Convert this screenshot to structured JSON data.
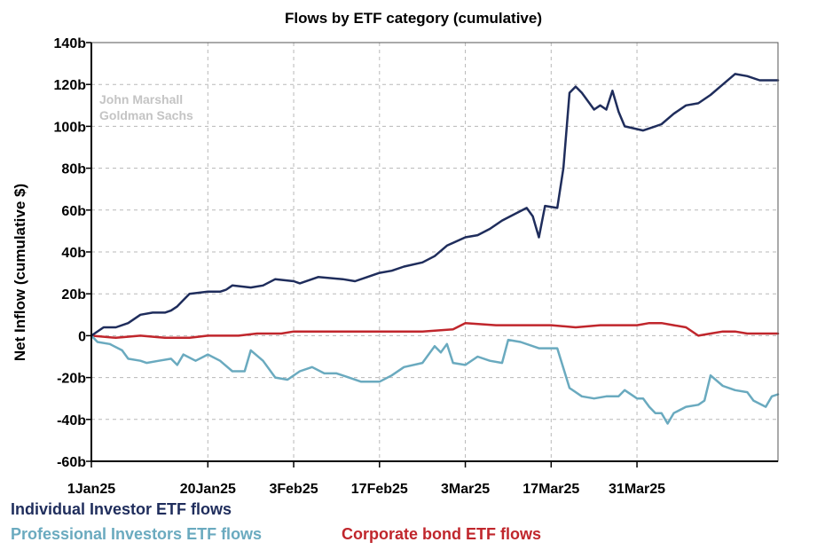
{
  "chart_data": {
    "type": "line",
    "title": "Flows by ETF category (cumulative)",
    "ylabel": "Net Inflow (cumulative $)",
    "xlabel": "",
    "ylim": [
      -60,
      140
    ],
    "xlim": [
      "2025-01-01",
      "2025-04-23"
    ],
    "y_ticks": [
      "140b",
      "120b",
      "100b",
      "80b",
      "60b",
      "40b",
      "20b",
      "0",
      "-20b",
      "-40b",
      "-60b"
    ],
    "y_tick_values": [
      140,
      120,
      100,
      80,
      60,
      40,
      20,
      0,
      -20,
      -40,
      -60
    ],
    "x_ticks": [
      "1Jan25",
      "20Jan25",
      "3Feb25",
      "17Feb25",
      "3Mar25",
      "17Mar25",
      "31Mar25"
    ],
    "x_tick_values": [
      "2025-01-01",
      "2025-01-20",
      "2025-02-03",
      "2025-02-17",
      "2025-03-03",
      "2025-03-17",
      "2025-03-31"
    ],
    "grid": true,
    "watermark": [
      "John Marshall",
      "Goldman Sachs"
    ],
    "series": [
      {
        "name": "Individual Investor ETF flows",
        "color": "#1f2d5c",
        "points": [
          [
            "2025-01-01",
            0
          ],
          [
            "2025-01-03",
            4
          ],
          [
            "2025-01-05",
            4
          ],
          [
            "2025-01-07",
            6
          ],
          [
            "2025-01-09",
            10
          ],
          [
            "2025-01-11",
            11
          ],
          [
            "2025-01-13",
            11
          ],
          [
            "2025-01-14",
            12
          ],
          [
            "2025-01-15",
            14
          ],
          [
            "2025-01-16",
            17
          ],
          [
            "2025-01-17",
            20
          ],
          [
            "2025-01-20",
            21
          ],
          [
            "2025-01-22",
            21
          ],
          [
            "2025-01-23",
            22
          ],
          [
            "2025-01-24",
            24
          ],
          [
            "2025-01-27",
            23
          ],
          [
            "2025-01-29",
            24
          ],
          [
            "2025-01-31",
            27
          ],
          [
            "2025-02-03",
            26
          ],
          [
            "2025-02-04",
            25
          ],
          [
            "2025-02-06",
            27
          ],
          [
            "2025-02-07",
            28
          ],
          [
            "2025-02-11",
            27
          ],
          [
            "2025-02-13",
            26
          ],
          [
            "2025-02-15",
            28
          ],
          [
            "2025-02-17",
            30
          ],
          [
            "2025-02-19",
            31
          ],
          [
            "2025-02-21",
            33
          ],
          [
            "2025-02-24",
            35
          ],
          [
            "2025-02-26",
            38
          ],
          [
            "2025-02-28",
            43
          ],
          [
            "2025-03-03",
            47
          ],
          [
            "2025-03-05",
            48
          ],
          [
            "2025-03-07",
            51
          ],
          [
            "2025-03-09",
            55
          ],
          [
            "2025-03-11",
            58
          ],
          [
            "2025-03-13",
            61
          ],
          [
            "2025-03-14",
            57
          ],
          [
            "2025-03-15",
            47
          ],
          [
            "2025-03-16",
            62
          ],
          [
            "2025-03-18",
            61
          ],
          [
            "2025-03-19",
            80
          ],
          [
            "2025-03-20",
            116
          ],
          [
            "2025-03-21",
            119
          ],
          [
            "2025-03-22",
            116
          ],
          [
            "2025-03-24",
            108
          ],
          [
            "2025-03-25",
            110
          ],
          [
            "2025-03-26",
            108
          ],
          [
            "2025-03-27",
            117
          ],
          [
            "2025-03-28",
            107
          ],
          [
            "2025-03-29",
            100
          ],
          [
            "2025-04-01",
            98
          ],
          [
            "2025-04-03",
            100
          ],
          [
            "2025-04-04",
            101
          ],
          [
            "2025-04-06",
            106
          ],
          [
            "2025-04-08",
            110
          ],
          [
            "2025-04-10",
            111
          ],
          [
            "2025-04-12",
            115
          ],
          [
            "2025-04-14",
            120
          ],
          [
            "2025-04-16",
            125
          ],
          [
            "2025-04-18",
            124
          ],
          [
            "2025-04-20",
            122
          ],
          [
            "2025-04-23",
            122
          ]
        ]
      },
      {
        "name": "Professional Investors ETF flows",
        "color": "#6aaabf",
        "points": [
          [
            "2025-01-01",
            0
          ],
          [
            "2025-01-02",
            -3
          ],
          [
            "2025-01-04",
            -4
          ],
          [
            "2025-01-06",
            -7
          ],
          [
            "2025-01-07",
            -11
          ],
          [
            "2025-01-09",
            -12
          ],
          [
            "2025-01-10",
            -13
          ],
          [
            "2025-01-12",
            -12
          ],
          [
            "2025-01-14",
            -11
          ],
          [
            "2025-01-15",
            -14
          ],
          [
            "2025-01-16",
            -9
          ],
          [
            "2025-01-18",
            -12
          ],
          [
            "2025-01-20",
            -9
          ],
          [
            "2025-01-22",
            -12
          ],
          [
            "2025-01-24",
            -17
          ],
          [
            "2025-01-26",
            -17
          ],
          [
            "2025-01-27",
            -7
          ],
          [
            "2025-01-29",
            -12
          ],
          [
            "2025-01-31",
            -20
          ],
          [
            "2025-02-02",
            -21
          ],
          [
            "2025-02-04",
            -17
          ],
          [
            "2025-02-06",
            -15
          ],
          [
            "2025-02-08",
            -18
          ],
          [
            "2025-02-10",
            -18
          ],
          [
            "2025-02-12",
            -20
          ],
          [
            "2025-02-14",
            -22
          ],
          [
            "2025-02-17",
            -22
          ],
          [
            "2025-02-19",
            -19
          ],
          [
            "2025-02-21",
            -15
          ],
          [
            "2025-02-24",
            -13
          ],
          [
            "2025-02-26",
            -5
          ],
          [
            "2025-02-27",
            -8
          ],
          [
            "2025-02-28",
            -4
          ],
          [
            "2025-03-01",
            -13
          ],
          [
            "2025-03-03",
            -14
          ],
          [
            "2025-03-05",
            -10
          ],
          [
            "2025-03-07",
            -12
          ],
          [
            "2025-03-09",
            -13
          ],
          [
            "2025-03-10",
            -2
          ],
          [
            "2025-03-12",
            -3
          ],
          [
            "2025-03-15",
            -6
          ],
          [
            "2025-03-17",
            -6
          ],
          [
            "2025-03-18",
            -6
          ],
          [
            "2025-03-20",
            -25
          ],
          [
            "2025-03-22",
            -29
          ],
          [
            "2025-03-24",
            -30
          ],
          [
            "2025-03-26",
            -29
          ],
          [
            "2025-03-28",
            -29
          ],
          [
            "2025-03-29",
            -26
          ],
          [
            "2025-03-31",
            -30
          ],
          [
            "2025-04-01",
            -30
          ],
          [
            "2025-04-02",
            -34
          ],
          [
            "2025-04-03",
            -37
          ],
          [
            "2025-04-04",
            -37
          ],
          [
            "2025-04-05",
            -42
          ],
          [
            "2025-04-06",
            -37
          ],
          [
            "2025-04-08",
            -34
          ],
          [
            "2025-04-10",
            -33
          ],
          [
            "2025-04-11",
            -31
          ],
          [
            "2025-04-12",
            -19
          ],
          [
            "2025-04-14",
            -24
          ],
          [
            "2025-04-16",
            -26
          ],
          [
            "2025-04-18",
            -27
          ],
          [
            "2025-04-19",
            -31
          ],
          [
            "2025-04-21",
            -34
          ],
          [
            "2025-04-22",
            -29
          ],
          [
            "2025-04-23",
            -28
          ]
        ]
      },
      {
        "name": "Corporate bond ETF flows",
        "color": "#c0262c",
        "points": [
          [
            "2025-01-01",
            0
          ],
          [
            "2025-01-05",
            -1
          ],
          [
            "2025-01-09",
            0
          ],
          [
            "2025-01-13",
            -1
          ],
          [
            "2025-01-17",
            -1
          ],
          [
            "2025-01-20",
            0
          ],
          [
            "2025-01-25",
            0
          ],
          [
            "2025-01-28",
            1
          ],
          [
            "2025-02-01",
            1
          ],
          [
            "2025-02-03",
            2
          ],
          [
            "2025-02-06",
            2
          ],
          [
            "2025-02-10",
            2
          ],
          [
            "2025-02-17",
            2
          ],
          [
            "2025-02-24",
            2
          ],
          [
            "2025-03-01",
            3
          ],
          [
            "2025-03-03",
            6
          ],
          [
            "2025-03-08",
            5
          ],
          [
            "2025-03-13",
            5
          ],
          [
            "2025-03-17",
            5
          ],
          [
            "2025-03-21",
            4
          ],
          [
            "2025-03-25",
            5
          ],
          [
            "2025-03-31",
            5
          ],
          [
            "2025-04-02",
            6
          ],
          [
            "2025-04-04",
            6
          ],
          [
            "2025-04-06",
            5
          ],
          [
            "2025-04-08",
            4
          ],
          [
            "2025-04-10",
            0
          ],
          [
            "2025-04-12",
            1
          ],
          [
            "2025-04-14",
            2
          ],
          [
            "2025-04-16",
            2
          ],
          [
            "2025-04-18",
            1
          ],
          [
            "2025-04-23",
            1
          ]
        ]
      }
    ]
  }
}
